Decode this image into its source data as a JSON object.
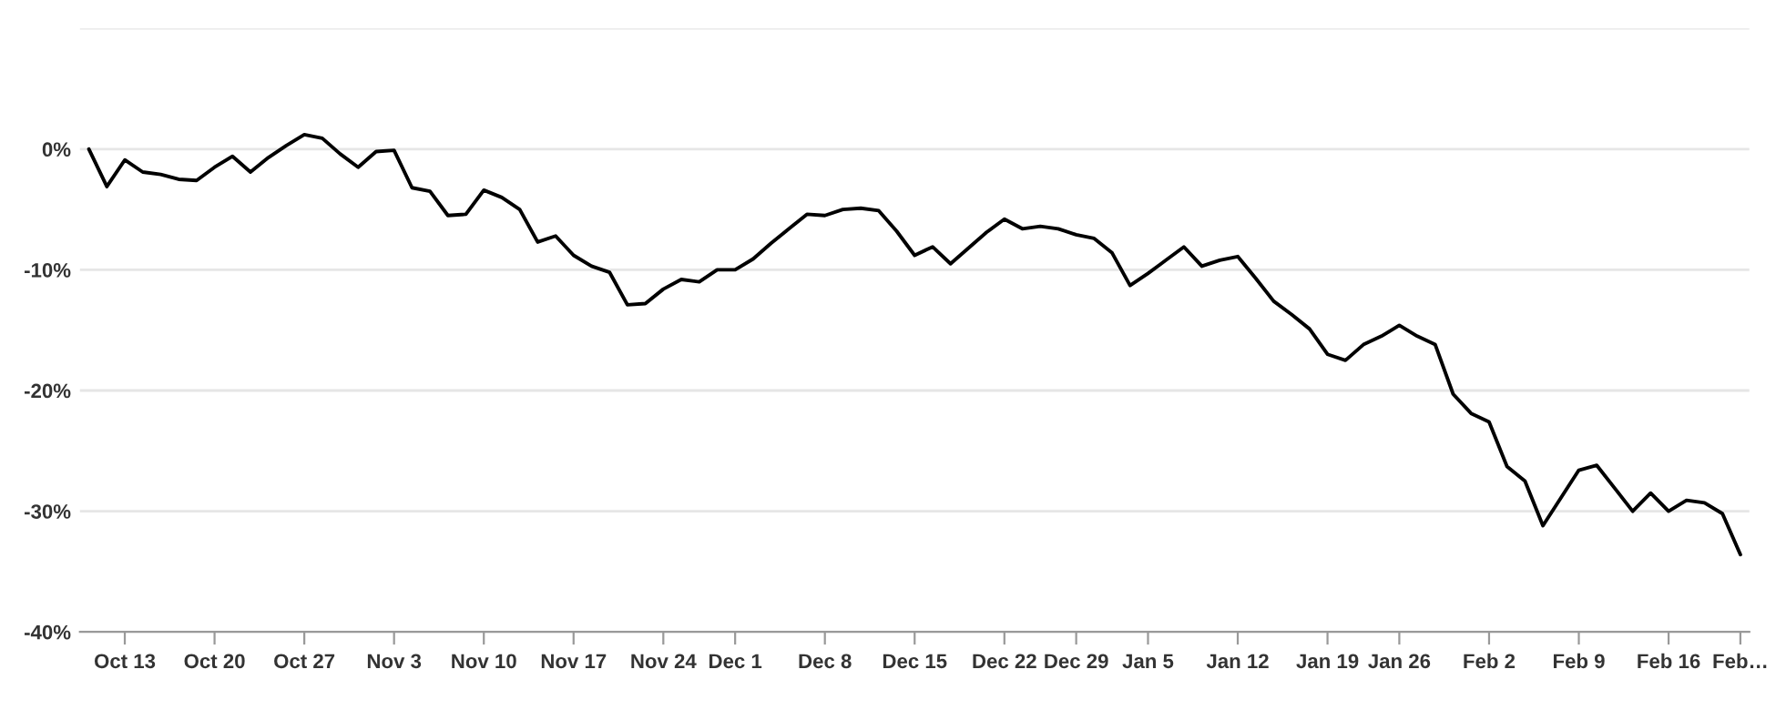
{
  "chart_data": {
    "type": "line",
    "categories": [
      null,
      null,
      "Oct 13",
      null,
      null,
      null,
      null,
      "Oct 20",
      null,
      null,
      null,
      null,
      "Oct 27",
      null,
      null,
      null,
      null,
      "Nov 3",
      null,
      null,
      null,
      null,
      "Nov 10",
      null,
      null,
      null,
      null,
      "Nov 17",
      null,
      null,
      null,
      null,
      "Nov 24",
      null,
      null,
      null,
      "Dec 1",
      null,
      null,
      null,
      null,
      "Dec 8",
      null,
      null,
      null,
      null,
      "Dec 15",
      null,
      null,
      null,
      null,
      "Dec 22",
      null,
      null,
      null,
      "Dec 29",
      null,
      null,
      null,
      "Jan 5",
      null,
      null,
      null,
      null,
      "Jan 12",
      null,
      null,
      null,
      null,
      "Jan 19",
      null,
      null,
      null,
      "Jan 26",
      null,
      null,
      null,
      null,
      "Feb 2",
      null,
      null,
      null,
      null,
      "Feb 9",
      null,
      null,
      null,
      null,
      "Feb 16",
      null,
      null,
      null,
      "Feb…"
    ],
    "series": [
      {
        "color": "#000000",
        "values": [
          0,
          -3.1,
          -0.9,
          -1.9,
          -2.1,
          -2.5,
          -2.6,
          -1.5,
          -0.6,
          -1.9,
          -0.7,
          0.3,
          1.2,
          0.9,
          -0.4,
          -1.5,
          -0.2,
          -0.1,
          -3.2,
          -3.5,
          -5.5,
          -5.4,
          -3.4,
          -4.0,
          -5.0,
          -7.7,
          -7.2,
          -8.8,
          -9.7,
          -10.2,
          -12.9,
          -12.8,
          -11.6,
          -10.8,
          -11.0,
          -10.0,
          -10.0,
          -9.1,
          -7.8,
          -6.6,
          -5.4,
          -5.5,
          -5.0,
          -4.9,
          -5.1,
          -6.8,
          -8.8,
          -8.1,
          -9.5,
          -8.2,
          -6.9,
          -5.8,
          -6.6,
          -6.4,
          -6.6,
          -7.1,
          -7.4,
          -8.6,
          -11.3,
          -10.3,
          -9.2,
          -8.1,
          -9.7,
          -9.2,
          -8.9,
          -10.7,
          -12.6,
          -13.7,
          -14.9,
          -17.0,
          -17.5,
          -16.2,
          -15.5,
          -14.6,
          -15.5,
          -16.2,
          -20.3,
          -21.9,
          -22.6,
          -26.3,
          -27.5,
          -31.2,
          -28.9,
          -26.6,
          -26.2,
          -28.1,
          -30.0,
          -28.5,
          -30.0,
          -29.1,
          -29.3,
          -30.2,
          -33.6
        ]
      }
    ],
    "ylim": [
      -40,
      10
    ],
    "yticks": [
      {
        "value": -40,
        "label": "-40%"
      },
      {
        "value": -30,
        "label": "-30%"
      },
      {
        "value": -20,
        "label": "-20%"
      },
      {
        "value": -10,
        "label": "-10%"
      },
      {
        "value": 0,
        "label": "0%"
      },
      {
        "value": 10,
        "label": null
      }
    ],
    "grid": "y",
    "marker": "none",
    "line_style": "solid"
  }
}
